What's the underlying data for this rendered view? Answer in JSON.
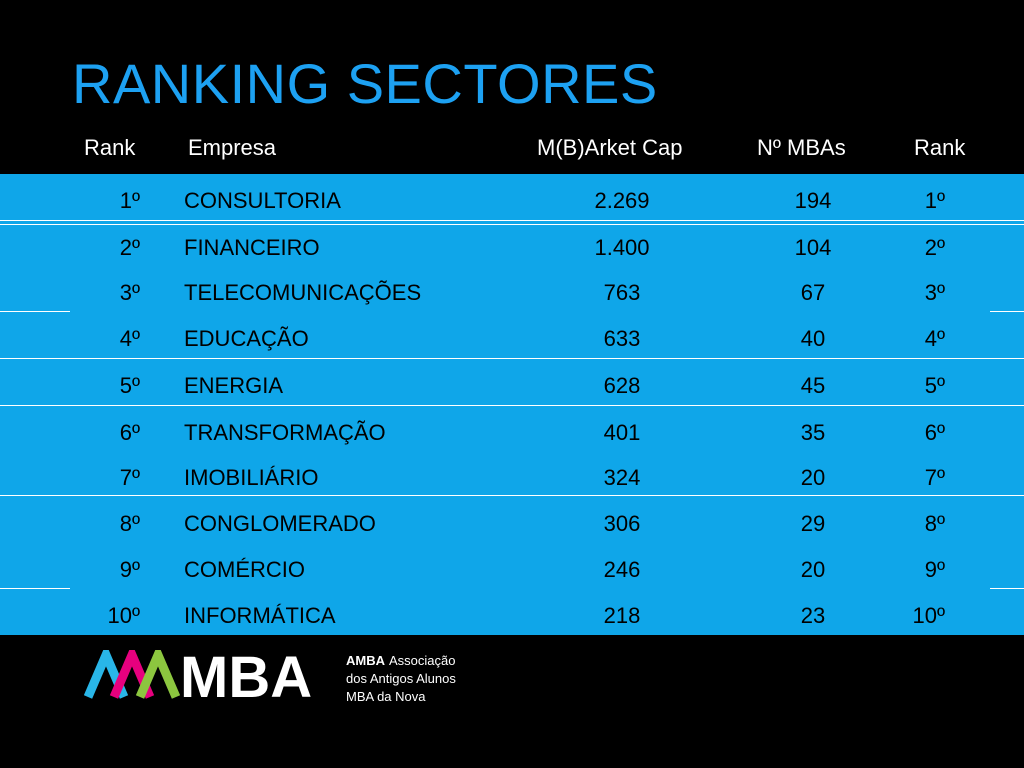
{
  "title": "RANKING SECTORES",
  "columns": {
    "rank": "Rank",
    "empresa": "Empresa",
    "market_cap": "M(B)Arket Cap",
    "mbas": "Nº MBAs",
    "rank2": "Rank"
  },
  "rows": [
    {
      "rank": "1º",
      "empresa": "CONSULTORIA",
      "market_cap": "2.269",
      "mbas": "194",
      "rank2": "1º"
    },
    {
      "rank": "2º",
      "empresa": "FINANCEIRO",
      "market_cap": "1.400",
      "mbas": "104",
      "rank2": "2º"
    },
    {
      "rank": "3º",
      "empresa": "TELECOMUNICAÇÕES",
      "market_cap": "763",
      "mbas": "67",
      "rank2": "3º"
    },
    {
      "rank": "4º",
      "empresa": "EDUCAÇÃO",
      "market_cap": "633",
      "mbas": "40",
      "rank2": "4º"
    },
    {
      "rank": "5º",
      "empresa": "ENERGIA",
      "market_cap": "628",
      "mbas": "45",
      "rank2": "5º"
    },
    {
      "rank": "6º",
      "empresa": "TRANSFORMAÇÃO",
      "market_cap": "401",
      "mbas": "35",
      "rank2": "6º"
    },
    {
      "rank": "7º",
      "empresa": "IMOBILIÁRIO",
      "market_cap": "324",
      "mbas": "20",
      "rank2": "7º"
    },
    {
      "rank": "8º",
      "empresa": "CONGLOMERADO",
      "market_cap": "306",
      "mbas": "29",
      "rank2": "8º"
    },
    {
      "rank": "9º",
      "empresa": "COMÉRCIO",
      "market_cap": "246",
      "mbas": "20",
      "rank2": "9º"
    },
    {
      "rank": "10º",
      "empresa": "INFORMÁTICA",
      "market_cap": "218",
      "mbas": "23",
      "rank2": "10º"
    }
  ],
  "logo": {
    "mark_text": "MBA",
    "name": "AMBA",
    "line1": "Associação",
    "line2": "dos Antigos Alunos",
    "line3": "MBA da Nova"
  },
  "colors": {
    "title": "#1DA1F2",
    "table_background": "#0FA6E9",
    "page_background": "#000000",
    "logo_cyan": "#29B6E8",
    "logo_magenta": "#E6007E",
    "logo_green": "#8CC63F"
  }
}
